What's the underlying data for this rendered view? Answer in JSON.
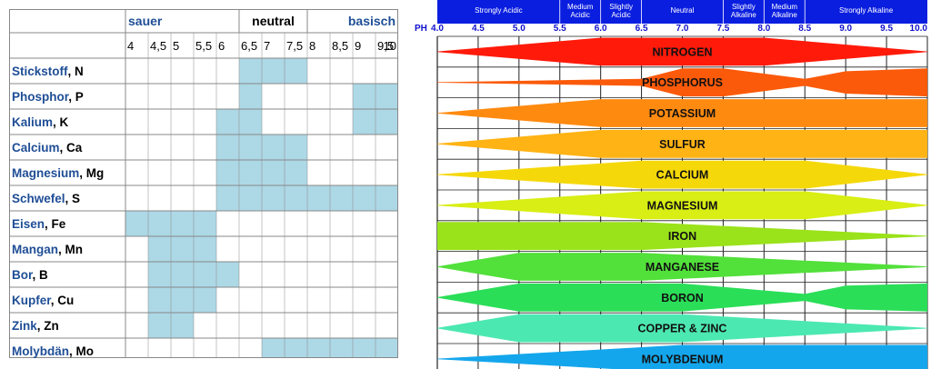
{
  "chart_data": [
    {
      "type": "table",
      "header_groups": [
        {
          "label": "sauer",
          "color": "#1f4e96"
        },
        {
          "label": "neutral",
          "color": "#000000"
        },
        {
          "label": "basisch",
          "color": "#1f4e96"
        }
      ],
      "x_ticks": [
        "4",
        "4,5",
        "5",
        "5,5",
        "6",
        "6,5",
        "7",
        "7,5",
        "8",
        "8,5",
        "9",
        "9,5",
        "10"
      ],
      "xlim": [
        4,
        10
      ],
      "rows": [
        {
          "name": "Stickstoff",
          "symbol": ", N",
          "ranges": [
            [
              6.5,
              8.0
            ]
          ]
        },
        {
          "name": "Phosphor",
          "symbol": ", P",
          "ranges": [
            [
              6.5,
              7.0
            ],
            [
              9.0,
              10.0
            ]
          ]
        },
        {
          "name": "Kalium",
          "symbol": ", K",
          "ranges": [
            [
              6.0,
              7.0
            ],
            [
              9.0,
              10.0
            ]
          ]
        },
        {
          "name": "Calcium",
          "symbol": ", Ca",
          "ranges": [
            [
              6.0,
              8.0
            ]
          ]
        },
        {
          "name": "Magnesium",
          "symbol": ", Mg",
          "ranges": [
            [
              6.0,
              8.0
            ]
          ]
        },
        {
          "name": "Schwefel",
          "symbol": ", S",
          "ranges": [
            [
              6.0,
              10.0
            ]
          ]
        },
        {
          "name": "Eisen",
          "symbol": ", Fe",
          "ranges": [
            [
              4.0,
              6.0
            ]
          ]
        },
        {
          "name": "Mangan",
          "symbol": ", Mn",
          "ranges": [
            [
              4.5,
              6.0
            ]
          ]
        },
        {
          "name": "Bor",
          "symbol": ", B",
          "ranges": [
            [
              4.5,
              6.5
            ]
          ]
        },
        {
          "name": "Kupfer",
          "symbol": ", Cu",
          "ranges": [
            [
              4.5,
              6.0
            ]
          ]
        },
        {
          "name": "Zink",
          "symbol": ", Zn",
          "ranges": [
            [
              4.5,
              5.5
            ]
          ]
        },
        {
          "name": "Molybdän",
          "symbol": ", Mo",
          "ranges": [
            [
              7.0,
              10.0
            ]
          ]
        }
      ],
      "colors": {
        "fill": "#add8e6",
        "name": "#1f4e96",
        "grid": "#888888"
      }
    },
    {
      "type": "area",
      "axis_label": "PH",
      "xlim": [
        4.0,
        10.0
      ],
      "x_ticks": [
        "4.0",
        "4.5",
        "5.0",
        "5.5",
        "6.0",
        "6.5",
        "7.0",
        "7.5",
        "8.0",
        "8.5",
        "9.0",
        "9.5",
        "10.0"
      ],
      "zones": [
        {
          "label": "Strongly Acidic",
          "from": 4.0,
          "to": 5.5
        },
        {
          "label": "Medium Acidic",
          "from": 5.5,
          "to": 6.0
        },
        {
          "label": "Slightly Acidic",
          "from": 6.0,
          "to": 6.5
        },
        {
          "label": "Neutral",
          "from": 6.5,
          "to": 7.5
        },
        {
          "label": "Slightly Alkaline",
          "from": 7.5,
          "to": 8.0
        },
        {
          "label": "Medium Alkaline",
          "from": 8.0,
          "to": 8.5
        },
        {
          "label": "Strongly Alkaline",
          "from": 8.5,
          "to": 10.0
        }
      ],
      "colors": {
        "header": "#0a1ee0",
        "header_text": "#ffffff",
        "ph_label": "#1010cc"
      },
      "series": [
        {
          "name": "NITROGEN",
          "color": "#ff1a0a",
          "profile": [
            [
              4.0,
              0
            ],
            [
              6.0,
              1
            ],
            [
              8.0,
              1
            ],
            [
              10.0,
              0
            ]
          ]
        },
        {
          "name": "PHOSPHORUS",
          "color": "#fb5a0a",
          "profile": [
            [
              4.0,
              0
            ],
            [
              6.5,
              0.25
            ],
            [
              7.0,
              1
            ],
            [
              7.5,
              1
            ],
            [
              8.5,
              0.25
            ],
            [
              9.0,
              0.8
            ],
            [
              10.0,
              1
            ]
          ]
        },
        {
          "name": "POTASSIUM",
          "color": "#ff8a10",
          "profile": [
            [
              4.0,
              0
            ],
            [
              6.0,
              1
            ],
            [
              10.0,
              1
            ]
          ]
        },
        {
          "name": "SULFUR",
          "color": "#ffb314",
          "profile": [
            [
              4.0,
              0
            ],
            [
              6.0,
              1
            ],
            [
              10.0,
              1
            ]
          ]
        },
        {
          "name": "CALCIUM",
          "color": "#f5d80a",
          "profile": [
            [
              4.0,
              0
            ],
            [
              6.5,
              1
            ],
            [
              8.5,
              1
            ],
            [
              10.0,
              0
            ]
          ]
        },
        {
          "name": "MAGNESIUM",
          "color": "#d8ee14",
          "profile": [
            [
              4.0,
              0
            ],
            [
              6.5,
              1
            ],
            [
              8.5,
              1
            ],
            [
              10.0,
              0
            ]
          ]
        },
        {
          "name": "IRON",
          "color": "#9ae21a",
          "profile": [
            [
              4.0,
              1
            ],
            [
              6.5,
              1
            ],
            [
              10.0,
              0
            ]
          ]
        },
        {
          "name": "MANGANESE",
          "color": "#52e03a",
          "profile": [
            [
              4.0,
              0
            ],
            [
              5.0,
              1
            ],
            [
              6.5,
              1
            ],
            [
              10.0,
              0
            ]
          ]
        },
        {
          "name": "BORON",
          "color": "#2bde58",
          "profile": [
            [
              4.0,
              0
            ],
            [
              5.0,
              1
            ],
            [
              7.0,
              1
            ],
            [
              8.5,
              0.25
            ],
            [
              9.0,
              0.85
            ],
            [
              10.0,
              1
            ]
          ]
        },
        {
          "name": "COPPER & ZINC",
          "color": "#4ce8b2",
          "profile": [
            [
              4.0,
              0
            ],
            [
              5.0,
              1
            ],
            [
              7.0,
              1
            ],
            [
              10.0,
              0
            ]
          ]
        },
        {
          "name": "MOLYBDENUM",
          "color": "#14a6ec",
          "profile": [
            [
              4.0,
              0
            ],
            [
              7.0,
              1
            ],
            [
              10.0,
              1
            ]
          ]
        }
      ]
    }
  ]
}
